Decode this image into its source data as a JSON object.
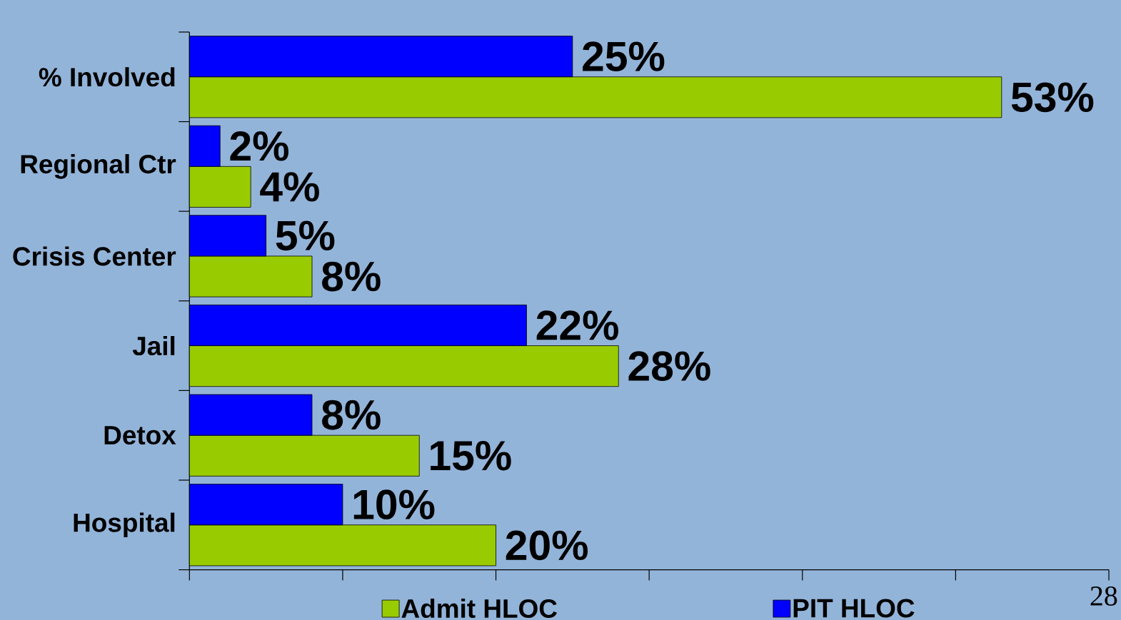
{
  "chart_data": {
    "type": "bar",
    "orientation": "horizontal",
    "categories": [
      "% Involved",
      "Regional Ctr",
      "Crisis Center",
      "Jail",
      "Detox",
      "Hospital"
    ],
    "series": [
      {
        "name": "Admit HLOC",
        "color": "#99cc00",
        "values": [
          53,
          4,
          8,
          28,
          15,
          20
        ],
        "value_labels": [
          "53%",
          "4%",
          "8%",
          "28%",
          "15%",
          "20%"
        ]
      },
      {
        "name": "PIT HLOC",
        "color": "#0000ff",
        "values": [
          25,
          2,
          5,
          22,
          8,
          10
        ],
        "value_labels": [
          "25%",
          "2%",
          "5%",
          "22%",
          "8%",
          "10%"
        ]
      }
    ],
    "xlim": [
      0,
      60
    ],
    "xticks": [
      {
        "value": 0,
        "label": null
      },
      {
        "value": 10,
        "label": null
      },
      {
        "value": 20,
        "label": null
      },
      {
        "value": 30,
        "label": null
      },
      {
        "value": 40,
        "label": null
      },
      {
        "value": 50,
        "label": null
      },
      {
        "value": 60,
        "label": null
      }
    ],
    "tick_labels": "y",
    "legend": "bottom",
    "annotations": [
      "28"
    ]
  }
}
